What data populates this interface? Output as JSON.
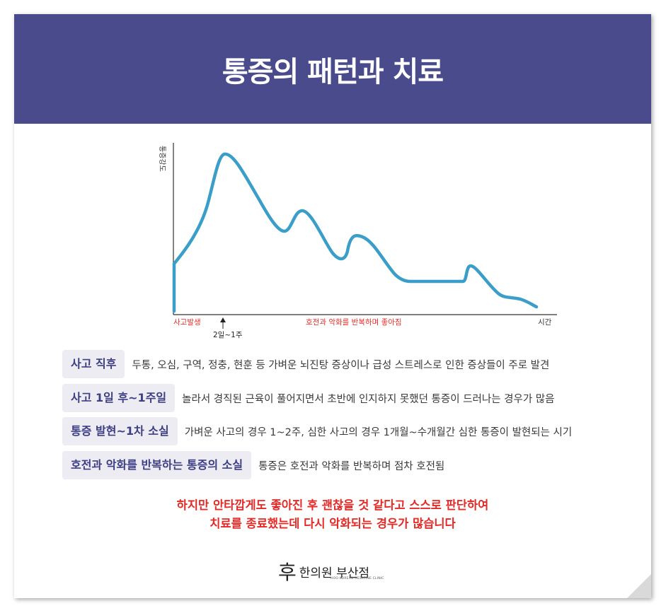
{
  "title": "통증의 패턴과 치료",
  "chart_data": {
    "type": "line",
    "ylabel": "통증강도",
    "xlabel": "시간",
    "x_annotations": {
      "start": "사고발생",
      "marker": "2일~1주",
      "middle": "호전과 악화를 반복하며 좋아짐"
    },
    "colors": {
      "line": "#3a9ec9",
      "axis": "#333333",
      "annotation": "#e32a27"
    }
  },
  "stages": [
    {
      "label": "사고 직후",
      "text": "두통, 오심, 구역, 정충, 현훈 등 가벼운 뇌진탕 증상이나 급성 스트레스로 인한 증상들이 주로 발견"
    },
    {
      "label": "사고 1일 후~1주일",
      "text": "놀라서 경직된 근육이 풀어지면서 초반에 인지하지 못했던 통증이 드러나는 경우가 많음"
    },
    {
      "label": "통증 발현~1차 소실",
      "text": "가벼운 사고의 경우 1~2주, 심한 사고의 경우 1개월~수개월간 심한 통증이 발현되는 시기"
    },
    {
      "label": "호전과 악화를 반복하는 통증의 소실",
      "text": "통증은 호전과 악화를 반복하며 점차 호전됨"
    }
  ],
  "warning": {
    "line1": "하지만 안타깝게도 좋아진 후 괜찮을 것 같다고 스스로 판단하여",
    "line2": "치료를 종료했는데 다시 악화되는 경우가 많습니다"
  },
  "logo": {
    "mark": "후",
    "name": "한의원 부산점",
    "sub": "HOO KOREAN MEDICINE CLINIC"
  },
  "theme": {
    "banner": "#4a4b8d",
    "tag_bg": "#ececf2",
    "tag_text": "#3d3e84",
    "warning": "#e32a27"
  }
}
